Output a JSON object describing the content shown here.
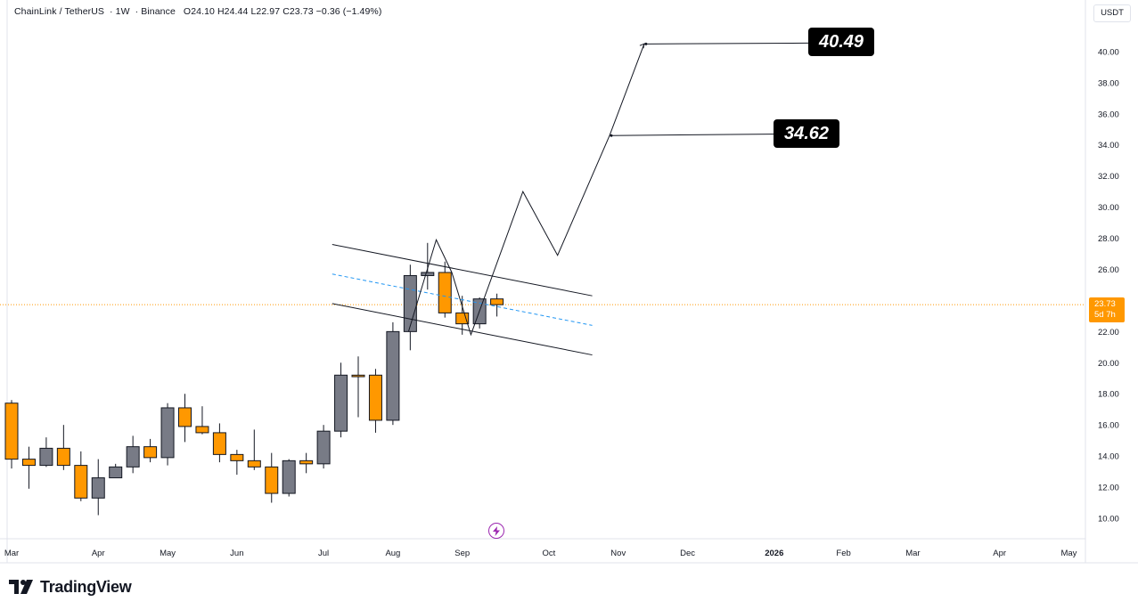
{
  "header": {
    "symbol": "ChainLink / TetherUS",
    "interval": "1W",
    "exchange": "Binance",
    "ohlc": "O24.10  H24.44  L22.97  C23.73  −0.36 (−1.49%)"
  },
  "currency": "USDT",
  "price_tag": {
    "price": "23.73",
    "countdown": "5d 7h"
  },
  "branding": {
    "name": "TradingView"
  },
  "colors": {
    "up": "#787b86",
    "down": "#ff9800",
    "price_line": "#ff9800",
    "channel": "#131722",
    "midline": "#2196f3",
    "callout_bg": "#000000"
  },
  "icons": [
    "lightning-icon",
    "tradingview-logo-icon"
  ],
  "chart_data": {
    "type": "candlestick",
    "y_range": [
      9,
      42
    ],
    "y_ticks": [
      "10.00",
      "12.00",
      "14.00",
      "16.00",
      "18.00",
      "20.00",
      "22.00",
      "24.00",
      "26.00",
      "28.00",
      "30.00",
      "32.00",
      "34.00",
      "36.00",
      "38.00",
      "40.00"
    ],
    "x_ticks": [
      {
        "label": "Mar",
        "week": 0
      },
      {
        "label": "Apr",
        "week": 5
      },
      {
        "label": "May",
        "week": 9
      },
      {
        "label": "Jun",
        "week": 13
      },
      {
        "label": "Jul",
        "week": 18
      },
      {
        "label": "Aug",
        "week": 22
      },
      {
        "label": "Sep",
        "week": 26
      },
      {
        "label": "Oct",
        "week": 31
      },
      {
        "label": "Nov",
        "week": 35
      },
      {
        "label": "Dec",
        "week": 39
      },
      {
        "label": "2026",
        "week": 44
      },
      {
        "label": "Feb",
        "week": 48
      },
      {
        "label": "Mar",
        "week": 52
      },
      {
        "label": "Apr",
        "week": 57
      },
      {
        "label": "May",
        "week": 61
      }
    ],
    "candles": [
      {
        "o": 17.4,
        "h": 17.6,
        "l": 13.2,
        "c": 13.8
      },
      {
        "o": 13.8,
        "h": 14.6,
        "l": 11.9,
        "c": 13.4
      },
      {
        "o": 13.4,
        "h": 15.2,
        "l": 13.3,
        "c": 14.5
      },
      {
        "o": 14.5,
        "h": 16.0,
        "l": 13.1,
        "c": 13.4
      },
      {
        "o": 13.4,
        "h": 14.3,
        "l": 11.1,
        "c": 11.3
      },
      {
        "o": 11.3,
        "h": 13.8,
        "l": 10.2,
        "c": 12.6
      },
      {
        "o": 12.6,
        "h": 13.5,
        "l": 12.6,
        "c": 13.3
      },
      {
        "o": 13.3,
        "h": 15.3,
        "l": 12.9,
        "c": 14.6
      },
      {
        "o": 14.6,
        "h": 15.1,
        "l": 13.6,
        "c": 13.9
      },
      {
        "o": 13.9,
        "h": 17.4,
        "l": 13.4,
        "c": 17.1
      },
      {
        "o": 17.1,
        "h": 18.0,
        "l": 14.9,
        "c": 15.9
      },
      {
        "o": 15.9,
        "h": 17.2,
        "l": 15.4,
        "c": 15.5
      },
      {
        "o": 15.5,
        "h": 16.1,
        "l": 13.6,
        "c": 14.1
      },
      {
        "o": 14.1,
        "h": 14.4,
        "l": 12.8,
        "c": 13.7
      },
      {
        "o": 13.7,
        "h": 15.7,
        "l": 13.1,
        "c": 13.3
      },
      {
        "o": 13.3,
        "h": 14.2,
        "l": 11.0,
        "c": 11.6
      },
      {
        "o": 11.6,
        "h": 13.8,
        "l": 11.4,
        "c": 13.7
      },
      {
        "o": 13.7,
        "h": 14.2,
        "l": 12.9,
        "c": 13.5
      },
      {
        "o": 13.5,
        "h": 16.0,
        "l": 13.2,
        "c": 15.6
      },
      {
        "o": 15.6,
        "h": 20.0,
        "l": 15.2,
        "c": 19.2
      },
      {
        "o": 19.2,
        "h": 20.4,
        "l": 16.5,
        "c": 19.1
      },
      {
        "o": 19.2,
        "h": 19.6,
        "l": 15.5,
        "c": 16.3
      },
      {
        "o": 16.3,
        "h": 22.6,
        "l": 16.0,
        "c": 22.0
      },
      {
        "o": 22.0,
        "h": 26.3,
        "l": 20.8,
        "c": 25.6
      },
      {
        "o": 25.6,
        "h": 27.7,
        "l": 24.7,
        "c": 25.8
      },
      {
        "o": 25.8,
        "h": 26.5,
        "l": 22.9,
        "c": 23.2
      },
      {
        "o": 23.2,
        "h": 24.3,
        "l": 21.8,
        "c": 22.5
      },
      {
        "o": 22.5,
        "h": 24.2,
        "l": 22.2,
        "c": 24.1
      },
      {
        "o": 24.1,
        "h": 24.44,
        "l": 22.97,
        "c": 23.73
      }
    ],
    "last_price": 23.73,
    "drawings": {
      "channel_upper": [
        [
          18.5,
          27.6
        ],
        [
          33.5,
          24.3
        ]
      ],
      "channel_lower": [
        [
          18.5,
          23.8
        ],
        [
          33.5,
          20.5
        ]
      ],
      "channel_mid": [
        [
          18.5,
          25.7
        ],
        [
          33.5,
          22.4
        ]
      ],
      "projection_path": [
        [
          22.9,
          22.0
        ],
        [
          24.5,
          27.9
        ],
        [
          25.4,
          25.8
        ],
        [
          26.5,
          21.8
        ],
        [
          29.5,
          31.0
        ],
        [
          31.5,
          26.9
        ],
        [
          34.5,
          34.6
        ],
        [
          36.5,
          40.5
        ]
      ],
      "target_lines": [
        {
          "from": [
            34.6,
            34.6
          ],
          "to": [
            44.5,
            34.7
          ],
          "label": "34.62"
        },
        {
          "from": [
            36.6,
            40.49
          ],
          "to": [
            46.5,
            40.55
          ],
          "label": "40.49"
        }
      ]
    }
  }
}
